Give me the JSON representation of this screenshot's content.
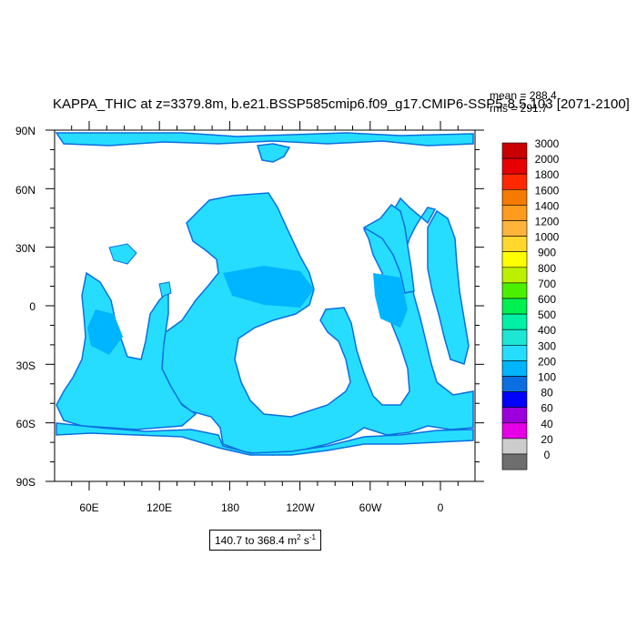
{
  "title": "KAPPA_THIC at z=3379.8m, b.e21.BSSP585cmip6.f09_g17.CMIP6-SSP5-8.5.103 [2071-2100]",
  "stats": {
    "mean": "mean = 288.4",
    "rms": "rms = 291.7"
  },
  "map": {
    "lat_ticks": [
      "90N",
      "60N",
      "30N",
      "0",
      "30S",
      "60S",
      "90S"
    ],
    "lon_ticks": [
      "60E",
      "120E",
      "180",
      "120W",
      "60W",
      "0"
    ],
    "ocean_color_main": "#27ddff",
    "ocean_color_deep": "#00b5ff",
    "coast_color": "#0a6fe0",
    "land_color": "#ffffff"
  },
  "colorbar": {
    "labels": [
      "3000",
      "2000",
      "1800",
      "1600",
      "1400",
      "1200",
      "1000",
      "900",
      "800",
      "700",
      "600",
      "500",
      "400",
      "300",
      "200",
      "100",
      "80",
      "60",
      "40",
      "20",
      "0"
    ],
    "colors": [
      "#c80000",
      "#e60000",
      "#ff2800",
      "#f57a00",
      "#ff9b1e",
      "#ffb43c",
      "#ffd72d",
      "#ffff00",
      "#bcf000",
      "#4bf000",
      "#00f050",
      "#00f0a5",
      "#1de6d2",
      "#27ddff",
      "#00b5ff",
      "#0a6fe0",
      "#0000ff",
      "#9b00dc",
      "#e600e6",
      "#cccccc",
      "#6e6e6e"
    ]
  },
  "range_label": {
    "text": "140.7 to 368.4 m",
    "sup1": "2",
    "unit": " s",
    "sup2": "-1"
  }
}
